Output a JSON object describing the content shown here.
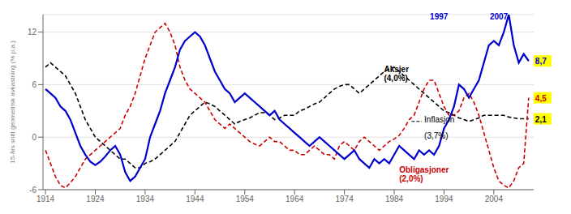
{
  "chart_data": {
    "type": "line",
    "ylabel": "15-års snitt geometrisk avkastning (% p.a.)",
    "x": [
      1914,
      1915,
      1916,
      1917,
      1918,
      1919,
      1920,
      1921,
      1922,
      1923,
      1924,
      1925,
      1926,
      1927,
      1928,
      1929,
      1930,
      1931,
      1932,
      1933,
      1934,
      1935,
      1936,
      1937,
      1938,
      1939,
      1940,
      1941,
      1942,
      1943,
      1944,
      1945,
      1946,
      1947,
      1948,
      1949,
      1950,
      1951,
      1952,
      1953,
      1954,
      1955,
      1956,
      1957,
      1958,
      1959,
      1960,
      1961,
      1962,
      1963,
      1964,
      1965,
      1966,
      1967,
      1968,
      1969,
      1970,
      1971,
      1972,
      1973,
      1974,
      1975,
      1976,
      1977,
      1978,
      1979,
      1980,
      1981,
      1982,
      1983,
      1984,
      1985,
      1986,
      1987,
      1988,
      1989,
      1990,
      1991,
      1992,
      1993,
      1994,
      1995,
      1996,
      1997,
      1998,
      1999,
      2000,
      2001,
      2002,
      2003,
      2004,
      2005,
      2006,
      2007,
      2008,
      2009,
      2010,
      2011
    ],
    "xlim": [
      1913.5,
      2012
    ],
    "xticks": [
      1914,
      1924,
      1934,
      1944,
      1954,
      1964,
      1974,
      1984,
      1994,
      2004
    ],
    "ylim": [
      -6,
      14
    ],
    "yticks": [
      -6,
      0,
      6,
      12
    ],
    "grid": true,
    "series": [
      {
        "color": "#000000",
        "line_style": "dashed",
        "end_label": "2,1",
        "values": [
          8.0,
          8.5,
          8.0,
          7.5,
          7.0,
          6.0,
          5.0,
          3.5,
          2.0,
          1.0,
          0.0,
          -0.5,
          -1.0,
          -1.5,
          -2.0,
          -2.5,
          -2.5,
          -3.0,
          -3.5,
          -3.5,
          -3.0,
          -2.8,
          -2.5,
          -2.0,
          -1.5,
          -1.0,
          -0.5,
          0.5,
          1.5,
          2.5,
          3.0,
          3.5,
          4.0,
          3.8,
          3.5,
          3.0,
          2.5,
          2.0,
          1.5,
          1.8,
          2.0,
          2.2,
          2.5,
          2.8,
          2.8,
          2.5,
          2.0,
          2.2,
          2.5,
          2.5,
          2.5,
          3.0,
          3.2,
          3.5,
          3.8,
          4.0,
          4.5,
          5.0,
          5.5,
          5.8,
          6.0,
          6.0,
          5.5,
          5.0,
          5.5,
          6.0,
          6.5,
          7.0,
          7.5,
          7.8,
          8.0,
          7.5,
          7.0,
          6.5,
          6.0,
          5.5,
          5.0,
          4.5,
          4.0,
          3.5,
          3.0,
          2.8,
          2.5,
          2.2,
          2.0,
          1.8,
          2.0,
          2.2,
          2.5,
          2.5,
          2.5,
          2.5,
          2.5,
          2.3,
          2.2,
          2.1,
          2.1,
          2.1
        ]
      },
      {
        "color": "#cc0000",
        "line_style": "dashed",
        "end_label": "4,5",
        "values": [
          -1.5,
          -3.0,
          -4.5,
          -5.5,
          -5.8,
          -5.2,
          -4.5,
          -3.5,
          -2.5,
          -2.0,
          -1.5,
          -1.0,
          -0.5,
          0.0,
          0.5,
          1.0,
          2.5,
          3.5,
          5.0,
          7.0,
          9.0,
          10.5,
          12.0,
          12.5,
          13.0,
          12.0,
          10.5,
          8.0,
          6.5,
          5.5,
          5.0,
          4.5,
          4.0,
          3.0,
          2.0,
          1.5,
          1.0,
          1.5,
          1.0,
          0.5,
          0.0,
          -0.5,
          -0.8,
          -1.0,
          -0.5,
          0.0,
          -0.5,
          -0.5,
          -1.0,
          -1.5,
          -1.5,
          -2.0,
          -2.0,
          -1.5,
          -1.0,
          -1.5,
          -2.0,
          -2.0,
          -2.5,
          -1.0,
          -0.5,
          -1.0,
          -1.5,
          -0.5,
          0.0,
          -0.5,
          -1.0,
          -1.5,
          -1.0,
          -0.5,
          -0.2,
          0.2,
          1.0,
          2.0,
          2.5,
          4.0,
          5.5,
          6.5,
          6.5,
          5.0,
          3.5,
          2.5,
          2.5,
          3.0,
          4.5,
          5.0,
          4.0,
          2.5,
          0.5,
          -1.5,
          -3.5,
          -5.0,
          -5.5,
          -5.8,
          -5.0,
          -3.5,
          -3.0,
          4.5
        ]
      },
      {
        "color": "#0000cc",
        "line_style": "solid",
        "end_label": "8,7",
        "values": [
          5.5,
          5.0,
          4.5,
          3.5,
          3.0,
          2.0,
          0.5,
          -1.0,
          -2.0,
          -2.8,
          -3.2,
          -2.8,
          -2.2,
          -1.5,
          -1.0,
          -2.0,
          -4.0,
          -5.0,
          -4.5,
          -3.5,
          -2.5,
          0.0,
          1.5,
          3.0,
          5.0,
          6.5,
          8.0,
          10.0,
          11.0,
          11.5,
          12.0,
          11.5,
          10.5,
          9.0,
          7.5,
          6.5,
          5.5,
          5.0,
          4.0,
          4.5,
          5.0,
          4.5,
          4.0,
          3.5,
          3.0,
          2.5,
          3.0,
          2.0,
          1.5,
          1.0,
          0.5,
          0.0,
          -0.5,
          -1.0,
          -0.5,
          0.0,
          -0.5,
          -1.0,
          -1.5,
          -2.0,
          -2.5,
          -2.0,
          -1.5,
          -2.5,
          -3.0,
          -3.5,
          -2.5,
          -3.0,
          -2.5,
          -3.0,
          -2.0,
          -1.0,
          -1.5,
          -2.0,
          -2.5,
          -1.5,
          -2.0,
          -1.5,
          -2.0,
          -1.0,
          1.0,
          2.0,
          3.5,
          6.0,
          5.5,
          4.5,
          5.5,
          6.5,
          8.5,
          10.5,
          11.0,
          10.5,
          12.0,
          14.0,
          10.5,
          8.5,
          9.5,
          8.7
        ]
      }
    ],
    "annotations": [
      {
        "text": "Aksjer\n(4,0%)",
        "color": "#000000"
      },
      {
        "text": "Obligasjoner\n(2,0%)",
        "color": "#cc0000"
      },
      {
        "text": "Inflasjon",
        "color": "#000000"
      },
      {
        "text": "(3,7%)",
        "color": "#000000"
      },
      {
        "text": "1997",
        "color": "#0000cc"
      },
      {
        "text": "2007",
        "color": "#0000cc"
      }
    ]
  }
}
